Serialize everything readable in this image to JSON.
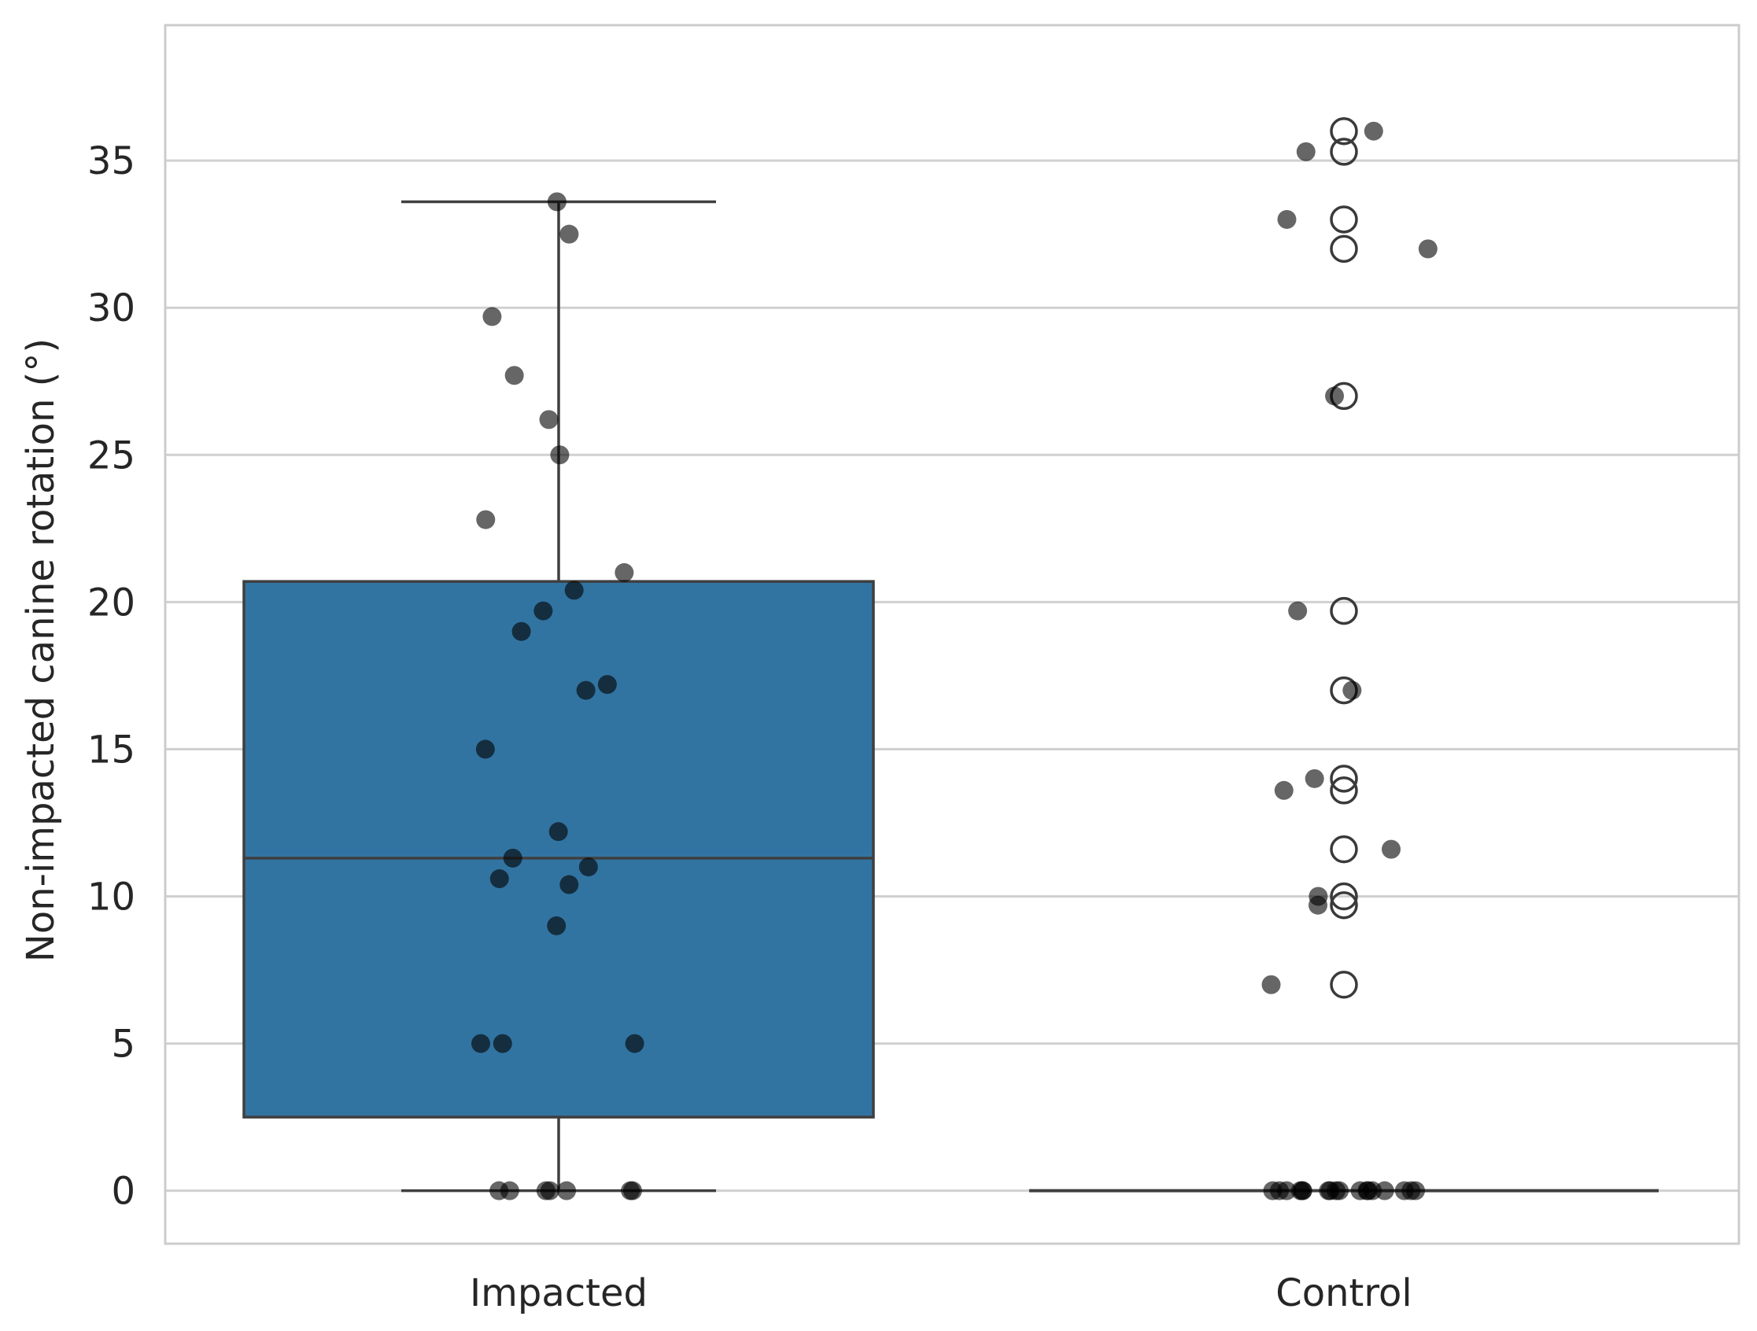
{
  "chart_data": {
    "type": "box",
    "title": "",
    "xlabel": "",
    "ylabel": "Non-impacted canine rotation (°)",
    "ylim": [
      -1.8,
      39.6
    ],
    "yticks": [
      0,
      5,
      10,
      15,
      20,
      25,
      30,
      35
    ],
    "grid": true,
    "categories": [
      "Impacted",
      "Control"
    ],
    "box_color": "#3274a1",
    "edge_color": "#3f3f3f",
    "point_color": "#000000",
    "box_stats": [
      {
        "category": "Impacted",
        "whisker_low": 0,
        "q1": 2.5,
        "median": 11.3,
        "q3": 20.7,
        "whisker_high": 33.6
      },
      {
        "category": "Control",
        "whisker_low": 0,
        "q1": 0,
        "median": 0,
        "q3": 0,
        "whisker_high": 0
      }
    ],
    "outliers": [
      {
        "category": "Control",
        "values": [
          36.0,
          35.3,
          33.0,
          32.0,
          27.0,
          19.7,
          17.0,
          14.0,
          13.6,
          11.6,
          10.0,
          9.7,
          7.0
        ]
      }
    ],
    "points": [
      {
        "category": "Impacted",
        "values": [
          33.6,
          32.5,
          29.7,
          27.7,
          26.2,
          25.0,
          22.8,
          21.0,
          20.4,
          19.7,
          19.0,
          17.2,
          17.0,
          15.0,
          12.2,
          11.3,
          11.0,
          10.6,
          10.4,
          9.0,
          5.0,
          5.0,
          5.0,
          0,
          0,
          0,
          0,
          0,
          0,
          0
        ]
      },
      {
        "category": "Control",
        "values": [
          36.0,
          35.3,
          33.0,
          32.0,
          27.0,
          19.7,
          17.0,
          14.0,
          13.6,
          11.6,
          10.0,
          9.7,
          7.0,
          0,
          0,
          0,
          0,
          0,
          0,
          0,
          0,
          0,
          0,
          0,
          0,
          0,
          0,
          0,
          0,
          0,
          0
        ]
      }
    ]
  }
}
